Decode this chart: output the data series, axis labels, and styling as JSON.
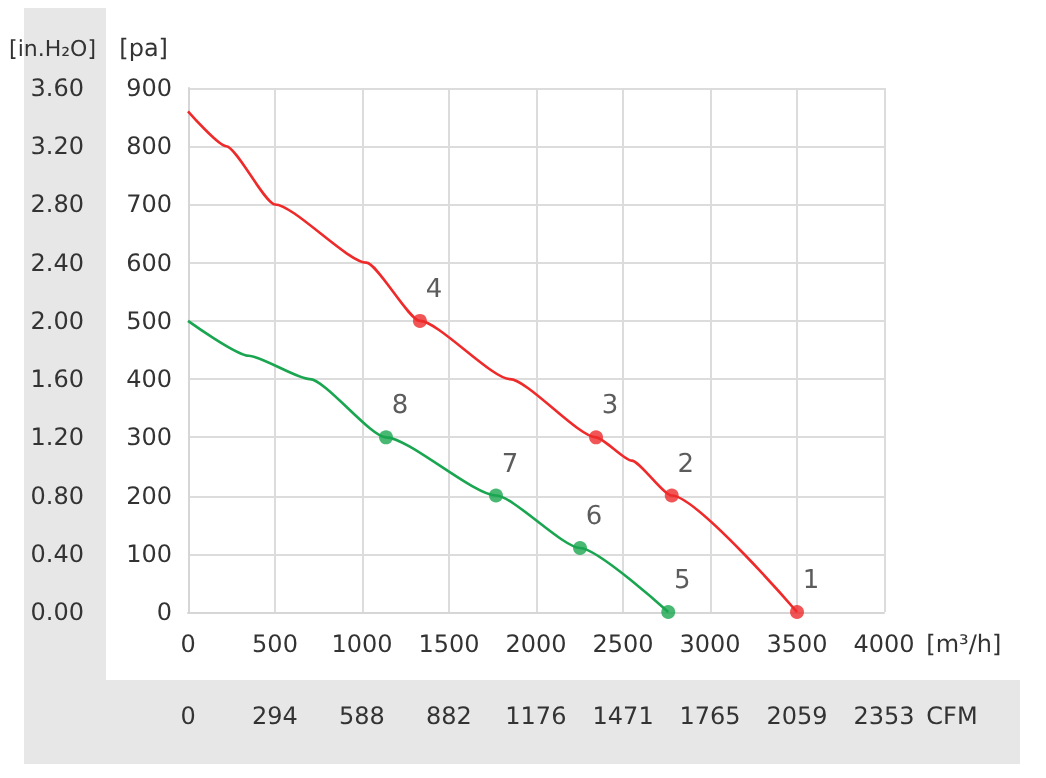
{
  "chart_data": {
    "type": "line",
    "ylabel": "[pa]",
    "y2label": "[in.H₂O]",
    "xlabel": "[m³/h]",
    "x2label": "CFM",
    "xlim": [
      0,
      4000
    ],
    "xticks": [
      0,
      500,
      1000,
      1500,
      2000,
      2500,
      3000,
      3500,
      4000
    ],
    "x2lim": [
      0,
      2353
    ],
    "x2ticks": [
      0,
      294,
      588,
      882,
      1176,
      1471,
      1765,
      2059,
      2353
    ],
    "ylim": [
      0,
      900
    ],
    "yticks": [
      0,
      100,
      200,
      300,
      400,
      500,
      600,
      700,
      800,
      900
    ],
    "y2lim": [
      0,
      3.6
    ],
    "y2ticks": [
      {
        "value": 0,
        "label": "0.00"
      },
      {
        "value": 0.4,
        "label": "0.40"
      },
      {
        "value": 0.8,
        "label": "0.80"
      },
      {
        "value": 1.2,
        "label": "1.20"
      },
      {
        "value": 1.6,
        "label": "1.60"
      },
      {
        "value": 2,
        "label": "2.00"
      },
      {
        "value": 2.4,
        "label": "2.40"
      },
      {
        "value": 2.8,
        "label": "2.80"
      },
      {
        "value": 3.2,
        "label": "3.20"
      },
      {
        "value": 3.6,
        "label": "3.60"
      }
    ],
    "grid": true,
    "series": [
      {
        "type": "line",
        "color": "#ee2a2a",
        "marker": "none",
        "x": [
          0,
          220,
          500,
          1025,
          1333,
          1850,
          2345,
          2550,
          2780,
          3500
        ],
        "values": [
          860,
          800,
          700,
          600,
          500,
          400,
          300,
          260,
          200,
          0
        ]
      },
      {
        "type": "line",
        "color": "#1aa650",
        "marker": "none",
        "x": [
          0,
          350,
          700,
          1138,
          1770,
          2253,
          2760
        ],
        "values": [
          500,
          440,
          400,
          300,
          200,
          110,
          0
        ]
      },
      {
        "type": "scatter",
        "color": "#ee2a2a",
        "marker": "circle",
        "x": [
          3500,
          2780,
          2345,
          1333
        ],
        "values": [
          0,
          200,
          300,
          500
        ]
      },
      {
        "type": "scatter",
        "color": "#1aa650",
        "marker": "circle",
        "x": [
          2760,
          2253,
          1770,
          1138
        ],
        "values": [
          0,
          110,
          200,
          300
        ]
      }
    ],
    "annotations": [
      {
        "text": "1",
        "x": 3500,
        "y": 0
      },
      {
        "text": "2",
        "x": 2780,
        "y": 200
      },
      {
        "text": "3",
        "x": 2345,
        "y": 300
      },
      {
        "text": "4",
        "x": 1333,
        "y": 500
      },
      {
        "text": "5",
        "x": 2760,
        "y": 0
      },
      {
        "text": "6",
        "x": 2253,
        "y": 110
      },
      {
        "text": "7",
        "x": 1770,
        "y": 200
      },
      {
        "text": "8",
        "x": 1138,
        "y": 300
      }
    ]
  }
}
